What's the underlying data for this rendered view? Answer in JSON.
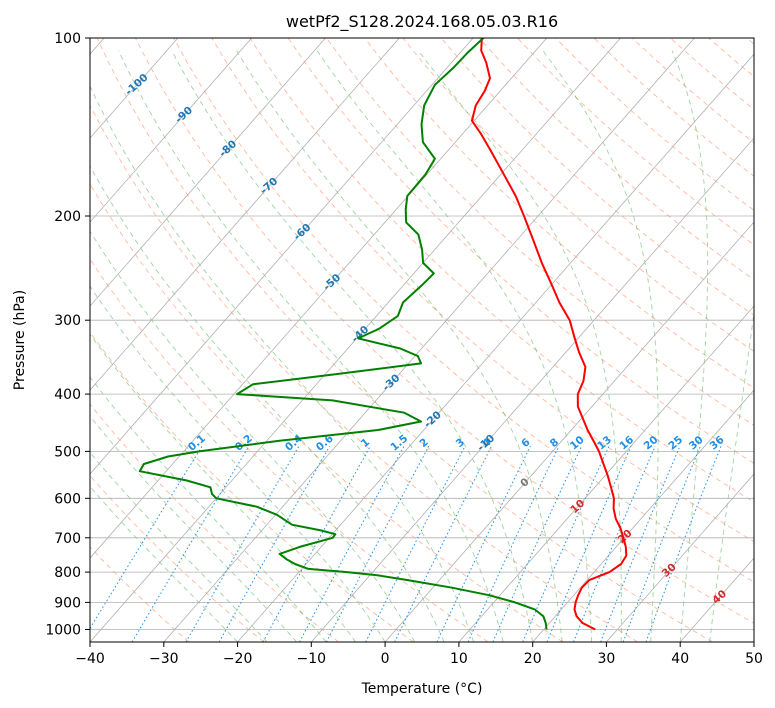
{
  "chart_data": {
    "type": "skew-t",
    "title": "wetPf2_S128.2024.168.05.03.R16",
    "xlabel": "Temperature (°C)",
    "ylabel": "Pressure (hPa)",
    "xlim": [
      -40,
      50
    ],
    "ylim": [
      1050,
      100
    ],
    "y_scale": "log",
    "grid": true,
    "x_ticks": [
      "−40",
      "−30",
      "−20",
      "−10",
      "0",
      "10",
      "20",
      "30",
      "40",
      "50"
    ],
    "y_ticks": [
      "100",
      "200",
      "300",
      "400",
      "500",
      "600",
      "700",
      "800",
      "900",
      "1000"
    ],
    "x_tick_values": [
      -40,
      -30,
      -20,
      -10,
      0,
      10,
      20,
      30,
      40,
      50
    ],
    "y_tick_values": [
      100,
      200,
      300,
      400,
      500,
      600,
      700,
      800,
      900,
      1000
    ],
    "colors": {
      "temperature": "#ff0000",
      "dewpoint": "#008000",
      "isotherm_label": "#1f77b4",
      "mixing_ratio_line": "#1f8fe8",
      "dry_adiabat": "#ff7f50",
      "moist_adiabat": "#2ca02c",
      "grid": "#b0b0b0",
      "warm_isotherm_label": "#d62728"
    },
    "isotherm_labels": [
      {
        "value": -100,
        "text": "-100"
      },
      {
        "value": -90,
        "text": "-90"
      },
      {
        "value": -80,
        "text": "-80"
      },
      {
        "value": -70,
        "text": "-70"
      },
      {
        "value": -60,
        "text": "-60"
      },
      {
        "value": -50,
        "text": "-50"
      },
      {
        "value": -40,
        "text": "-40"
      },
      {
        "value": -30,
        "text": "-30"
      },
      {
        "value": -20,
        "text": "-20"
      },
      {
        "value": -10,
        "text": "-10"
      },
      {
        "value": 0,
        "text": "0"
      },
      {
        "value": 10,
        "text": "10"
      },
      {
        "value": 20,
        "text": "20"
      },
      {
        "value": 30,
        "text": "30"
      },
      {
        "value": 40,
        "text": "40"
      }
    ],
    "mixing_ratio_labels": [
      "0.1",
      "0.2",
      "0.4",
      "0.6",
      "1",
      "1.5",
      "2",
      "3",
      "4",
      "6",
      "8",
      "10",
      "13",
      "16",
      "20",
      "25",
      "30",
      "36"
    ],
    "mixing_ratio_values": [
      0.1,
      0.2,
      0.4,
      0.6,
      1,
      1.5,
      2,
      3,
      4,
      6,
      8,
      10,
      13,
      16,
      20,
      25,
      30,
      36
    ],
    "series": [
      {
        "key": "temperature",
        "points": [
          [
            1000,
            27.0
          ],
          [
            975,
            24.5
          ],
          [
            950,
            22.9
          ],
          [
            925,
            21.8
          ],
          [
            900,
            21.1
          ],
          [
            875,
            20.6
          ],
          [
            850,
            20.2
          ],
          [
            825,
            20.3
          ],
          [
            800,
            22.1
          ],
          [
            775,
            22.7
          ],
          [
            750,
            22.4
          ],
          [
            725,
            21.3
          ],
          [
            700,
            19.9
          ],
          [
            675,
            18.4
          ],
          [
            650,
            16.6
          ],
          [
            625,
            15.1
          ],
          [
            600,
            13.9
          ],
          [
            575,
            12.2
          ],
          [
            550,
            10.4
          ],
          [
            525,
            8.4
          ],
          [
            500,
            6.3
          ],
          [
            480,
            4.3
          ],
          [
            460,
            2.2
          ],
          [
            440,
            0.2
          ],
          [
            420,
            -1.9
          ],
          [
            400,
            -3.4
          ],
          [
            380,
            -4.2
          ],
          [
            360,
            -5.6
          ],
          [
            340,
            -8.2
          ],
          [
            320,
            -10.7
          ],
          [
            300,
            -13.3
          ],
          [
            280,
            -16.8
          ],
          [
            260,
            -20.2
          ],
          [
            240,
            -23.9
          ],
          [
            220,
            -27.7
          ],
          [
            200,
            -31.9
          ],
          [
            185,
            -35.4
          ],
          [
            170,
            -39.6
          ],
          [
            155,
            -44.2
          ],
          [
            145,
            -47.6
          ],
          [
            138,
            -50.3
          ],
          [
            130,
            -51.6
          ],
          [
            123,
            -52.1
          ],
          [
            117,
            -52.9
          ],
          [
            110,
            -55.3
          ],
          [
            105,
            -57.4
          ],
          [
            100,
            -58.8
          ]
        ]
      },
      {
        "key": "dewpoint",
        "points": [
          [
            1000,
            20.4
          ],
          [
            975,
            19.5
          ],
          [
            950,
            18.4
          ],
          [
            925,
            16.4
          ],
          [
            900,
            12.9
          ],
          [
            875,
            8.5
          ],
          [
            850,
            2.6
          ],
          [
            825,
            -4.3
          ],
          [
            810,
            -9.0
          ],
          [
            800,
            -13.5
          ],
          [
            790,
            -19.1
          ],
          [
            775,
            -21.5
          ],
          [
            760,
            -23.3
          ],
          [
            745,
            -24.8
          ],
          [
            725,
            -22.9
          ],
          [
            700,
            -19.5
          ],
          [
            690,
            -19.6
          ],
          [
            680,
            -22.0
          ],
          [
            665,
            -26.6
          ],
          [
            640,
            -29.8
          ],
          [
            620,
            -33.5
          ],
          [
            600,
            -40.0
          ],
          [
            590,
            -41.1
          ],
          [
            575,
            -42.1
          ],
          [
            560,
            -46.1
          ],
          [
            540,
            -53.6
          ],
          [
            525,
            -53.9
          ],
          [
            510,
            -51.5
          ],
          [
            500,
            -47.9
          ],
          [
            480,
            -38.4
          ],
          [
            460,
            -26.2
          ],
          [
            445,
            -21.4
          ],
          [
            430,
            -24.7
          ],
          [
            410,
            -35.9
          ],
          [
            400,
            -49.6
          ],
          [
            385,
            -48.6
          ],
          [
            370,
            -38.5
          ],
          [
            355,
            -28.3
          ],
          [
            345,
            -29.6
          ],
          [
            335,
            -32.9
          ],
          [
            322,
            -39.8
          ],
          [
            310,
            -38.1
          ],
          [
            295,
            -37.1
          ],
          [
            280,
            -38.0
          ],
          [
            262,
            -37.5
          ],
          [
            250,
            -37.3
          ],
          [
            240,
            -40.0
          ],
          [
            228,
            -41.7
          ],
          [
            215,
            -44.0
          ],
          [
            205,
            -47.1
          ],
          [
            195,
            -48.7
          ],
          [
            185,
            -50.1
          ],
          [
            170,
            -50.2
          ],
          [
            160,
            -50.8
          ],
          [
            150,
            -54.4
          ],
          [
            140,
            -56.7
          ],
          [
            130,
            -58.6
          ],
          [
            120,
            -59.6
          ],
          [
            112,
            -59.1
          ],
          [
            106,
            -59.0
          ],
          [
            100,
            -58.6
          ]
        ]
      }
    ]
  }
}
